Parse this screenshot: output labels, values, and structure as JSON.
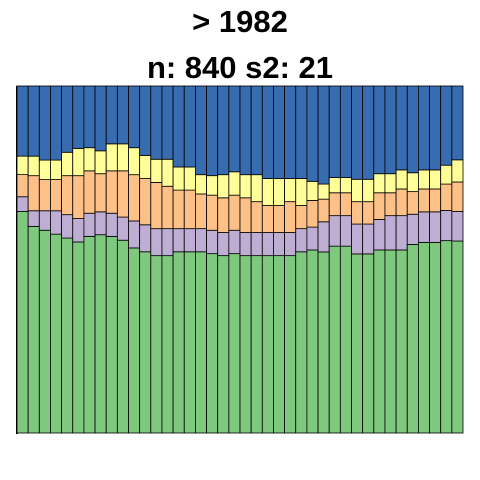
{
  "chart_data": {
    "type": "bar",
    "stacked": "percent",
    "title": "> 1982",
    "subtitle": "n: 840 s2: 21",
    "xlabel": "",
    "ylabel": "",
    "ylim": [
      0,
      1
    ],
    "grid": false,
    "legend": "none",
    "colors": [
      "#7fc97f",
      "#beaed4",
      "#fdc086",
      "#ffff99",
      "#386cb0"
    ],
    "series": [
      {
        "name": "",
        "color": "#7fc97f",
        "values": [
          0.6,
          0.53,
          0.52,
          0.51,
          0.5,
          0.49,
          0.51,
          0.52,
          0.51,
          0.5,
          0.48,
          0.47,
          0.46,
          0.46,
          0.47,
          0.47,
          0.47,
          0.46,
          0.46,
          0.46,
          0.46,
          0.46,
          0.46,
          0.46,
          0.46,
          0.47,
          0.48,
          0.48,
          0.49,
          0.49,
          0.48,
          0.48,
          0.48,
          0.48,
          0.48,
          0.5,
          0.5,
          0.5,
          0.51,
          0.52
        ]
      },
      {
        "name": "",
        "color": "#beaed4",
        "values": [
          0.04,
          0.04,
          0.05,
          0.06,
          0.06,
          0.06,
          0.06,
          0.06,
          0.06,
          0.06,
          0.07,
          0.07,
          0.07,
          0.07,
          0.06,
          0.06,
          0.06,
          0.06,
          0.06,
          0.06,
          0.06,
          0.06,
          0.06,
          0.06,
          0.06,
          0.06,
          0.06,
          0.08,
          0.08,
          0.08,
          0.08,
          0.08,
          0.08,
          0.09,
          0.09,
          0.08,
          0.08,
          0.08,
          0.08,
          0.08
        ]
      },
      {
        "name": "",
        "color": "#fdc086",
        "values": [
          0.06,
          0.09,
          0.08,
          0.08,
          0.1,
          0.11,
          0.11,
          0.1,
          0.11,
          0.12,
          0.12,
          0.12,
          0.12,
          0.11,
          0.1,
          0.1,
          0.09,
          0.09,
          0.09,
          0.09,
          0.09,
          0.08,
          0.07,
          0.07,
          0.08,
          0.06,
          0.07,
          0.06,
          0.06,
          0.06,
          0.06,
          0.06,
          0.07,
          0.06,
          0.07,
          0.06,
          0.06,
          0.06,
          0.07,
          0.08
        ]
      },
      {
        "name": "",
        "color": "#ffff99",
        "values": [
          0.05,
          0.05,
          0.05,
          0.05,
          0.06,
          0.07,
          0.06,
          0.06,
          0.07,
          0.07,
          0.07,
          0.06,
          0.06,
          0.07,
          0.06,
          0.06,
          0.05,
          0.05,
          0.06,
          0.06,
          0.06,
          0.07,
          0.07,
          0.07,
          0.06,
          0.07,
          0.05,
          0.04,
          0.04,
          0.04,
          0.06,
          0.06,
          0.05,
          0.05,
          0.05,
          0.05,
          0.05,
          0.05,
          0.05,
          0.06
        ]
      },
      {
        "name": "",
        "color": "#386cb0",
        "values": [
          0.19,
          0.18,
          0.19,
          0.19,
          0.17,
          0.16,
          0.16,
          0.17,
          0.15,
          0.15,
          0.16,
          0.18,
          0.19,
          0.19,
          0.21,
          0.21,
          0.23,
          0.23,
          0.23,
          0.22,
          0.23,
          0.23,
          0.24,
          0.24,
          0.24,
          0.24,
          0.25,
          0.26,
          0.24,
          0.24,
          0.25,
          0.25,
          0.23,
          0.23,
          0.22,
          0.23,
          0.22,
          0.22,
          0.21,
          0.2
        ]
      }
    ]
  }
}
